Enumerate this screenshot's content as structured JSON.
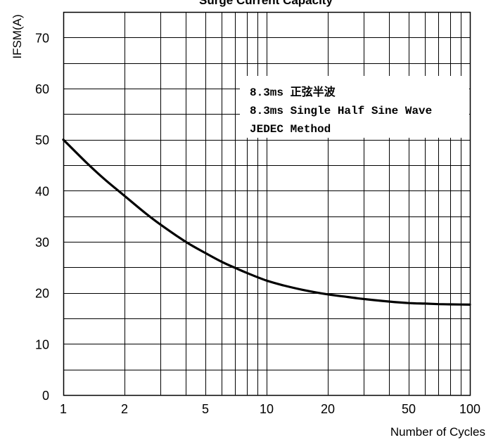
{
  "chart_data": {
    "type": "line",
    "title": "Surge Current Capacity",
    "xlabel": "Number of Cycles",
    "ylabel": "IFSM(A)",
    "x_scale": "log",
    "xlim": [
      1,
      100
    ],
    "ylim": [
      0,
      75
    ],
    "x_ticks": [
      1,
      2,
      5,
      10,
      20,
      50,
      100
    ],
    "x_tick_labels": [
      "1",
      "2",
      "5",
      "10",
      "20",
      "50",
      "100"
    ],
    "y_ticks": [
      0,
      10,
      20,
      30,
      40,
      50,
      60,
      70
    ],
    "y_tick_labels": [
      "0",
      "10",
      "20",
      "30",
      "40",
      "50",
      "60",
      "70"
    ],
    "grid": true,
    "legend_position": "top-right",
    "annotation_lines": [
      "8.3ms 正弦半波",
      "8.3ms Single Half Sine Wave",
      "JEDEC Method"
    ],
    "series": [
      {
        "color": "#000000",
        "x": [
          1,
          1.3,
          1.6,
          2,
          2.5,
          3,
          4,
          5,
          6,
          7,
          8,
          10,
          12,
          15,
          20,
          25,
          30,
          40,
          50,
          60,
          70,
          80,
          100
        ],
        "y": [
          50,
          45.5,
          42.2,
          39,
          35.8,
          33.4,
          30,
          27.8,
          26.1,
          24.9,
          23.9,
          22.4,
          21.5,
          20.6,
          19.7,
          19.2,
          18.8,
          18.3,
          18.0,
          17.9,
          17.8,
          17.75,
          17.7
        ]
      }
    ]
  }
}
